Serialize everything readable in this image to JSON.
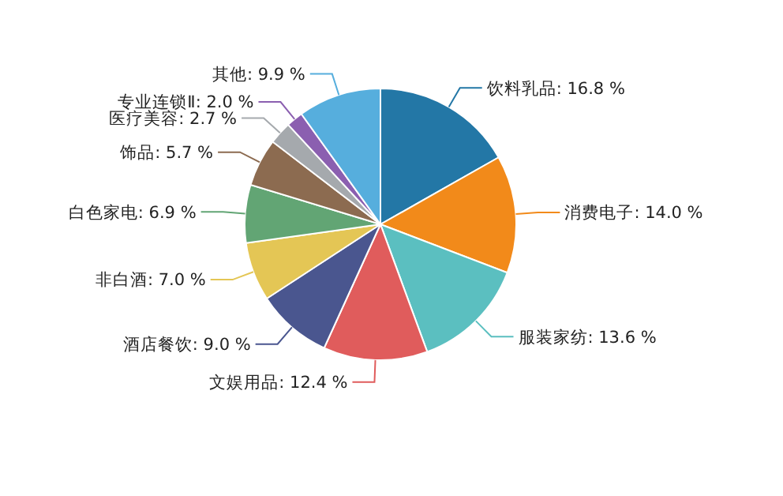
{
  "chart_data": {
    "type": "pie",
    "categories": [
      "饮料乳品",
      "消费电子",
      "服装家纺",
      "文娱用品",
      "酒店餐饮",
      "非白酒",
      "白色家电",
      "饰品",
      "医疗美容",
      "专业连锁Ⅱ",
      "其他"
    ],
    "values": [
      16.8,
      14.0,
      13.6,
      12.4,
      9.0,
      7.0,
      6.9,
      5.7,
      2.7,
      2.0,
      9.9
    ],
    "value_labels": [
      "16.8 %",
      "14.0 %",
      "13.6 %",
      "12.4 %",
      "9.0 %",
      "7.0 %",
      "6.9 %",
      "5.7 %",
      "2.7 %",
      "2.0 %",
      "9.9 %"
    ],
    "colors": [
      "#2377a6",
      "#f28a1a",
      "#5bbfc0",
      "#e05c5c",
      "#4a568f",
      "#e4c655",
      "#62a574",
      "#8c6b50",
      "#a5a9ad",
      "#8b5fb0",
      "#56aedd"
    ]
  }
}
